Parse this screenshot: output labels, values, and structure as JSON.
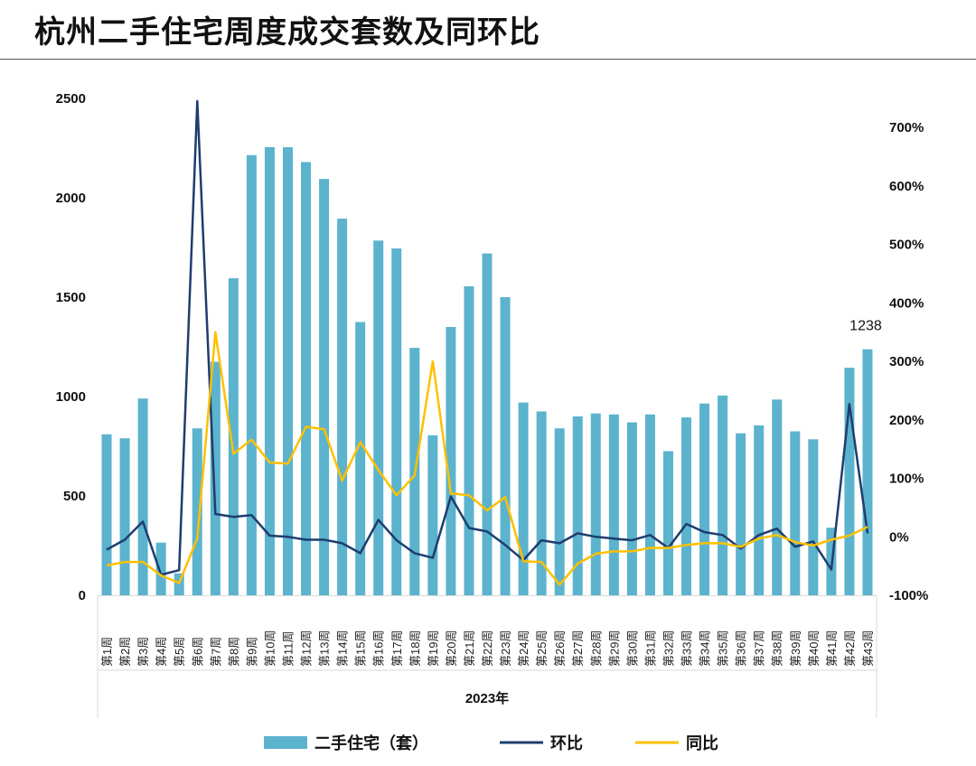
{
  "title": "杭州二手住宅周度成交套数及同环比",
  "chart_data": {
    "type": "bar+line",
    "title": "杭州二手住宅周度成交套数及同环比",
    "xlabel": "2023年",
    "categories": [
      "第1周",
      "第2周",
      "第3周",
      "第4周",
      "第5周",
      "第6周",
      "第7周",
      "第8周",
      "第9周",
      "第10周",
      "第11周",
      "第12周",
      "第13周",
      "第14周",
      "第15周",
      "第16周",
      "第17周",
      "第18周",
      "第19周",
      "第20周",
      "第21周",
      "第22周",
      "第23周",
      "第24周",
      "第25周",
      "第26周",
      "第27周",
      "第28周",
      "第29周",
      "第30周",
      "第31周",
      "第32周",
      "第33周",
      "第34周",
      "第35周",
      "第36周",
      "第37周",
      "第38周",
      "第39周",
      "第40周",
      "第41周",
      "第42周",
      "第43周"
    ],
    "left_axis": {
      "ylim": [
        0,
        2500
      ],
      "ticks": [
        "0",
        "500",
        "1000",
        "1500",
        "2000",
        "2500"
      ],
      "tick_values": [
        0,
        500,
        1000,
        1500,
        2000,
        2500
      ]
    },
    "right_axis": {
      "ylim": [
        -100,
        700
      ],
      "ticks": [
        "-100%",
        "0%",
        "100%",
        "200%",
        "300%",
        "400%",
        "500%",
        "600%",
        "700%"
      ],
      "tick_values": [
        -100,
        0,
        100,
        200,
        300,
        400,
        500,
        600,
        700
      ]
    },
    "series": [
      {
        "name": "二手住宅（套）",
        "type": "bar",
        "axis": "left",
        "color": "#5BB3CE",
        "values": [
          810,
          790,
          990,
          265,
          110,
          840,
          1175,
          1595,
          2215,
          2255,
          2255,
          2180,
          2095,
          1895,
          1375,
          1785,
          1745,
          1245,
          805,
          1350,
          1555,
          1720,
          1500,
          970,
          925,
          840,
          900,
          915,
          910,
          870,
          910,
          725,
          895,
          965,
          1005,
          815,
          855,
          985,
          825,
          785,
          340,
          1145,
          1238
        ]
      },
      {
        "name": "环比",
        "type": "line",
        "axis": "right",
        "color": "#1F3D6E",
        "values": [
          -22,
          -5,
          26,
          -65,
          -57,
          745,
          39,
          34,
          37,
          2,
          0,
          -5,
          -5,
          -11,
          -28,
          29,
          -6,
          -28,
          -36,
          69,
          15,
          9,
          -14,
          -40,
          -6,
          -11,
          6,
          0,
          -3,
          -6,
          3,
          -19,
          22,
          8,
          3,
          -20,
          3,
          14,
          -17,
          -8,
          -56,
          227,
          6
        ]
      },
      {
        "name": "同比",
        "type": "line",
        "axis": "right",
        "color": "#FFC000",
        "values": [
          -49,
          -43,
          -43,
          -66,
          -79,
          -3,
          350,
          142,
          166,
          127,
          125,
          188,
          184,
          96,
          162,
          114,
          71,
          105,
          300,
          74,
          71,
          45,
          68,
          -42,
          -43,
          -82,
          -46,
          -29,
          -25,
          -25,
          -19,
          -19,
          -14,
          -11,
          -11,
          -17,
          -3,
          3,
          -9,
          -15,
          -5,
          2,
          17
        ]
      }
    ],
    "annotations": [
      {
        "category": "第43周",
        "text": "1238"
      }
    ],
    "legend": {
      "placement": "bottom",
      "entries": [
        "二手住宅（套）",
        "环比",
        "同比"
      ]
    },
    "grid": false
  }
}
